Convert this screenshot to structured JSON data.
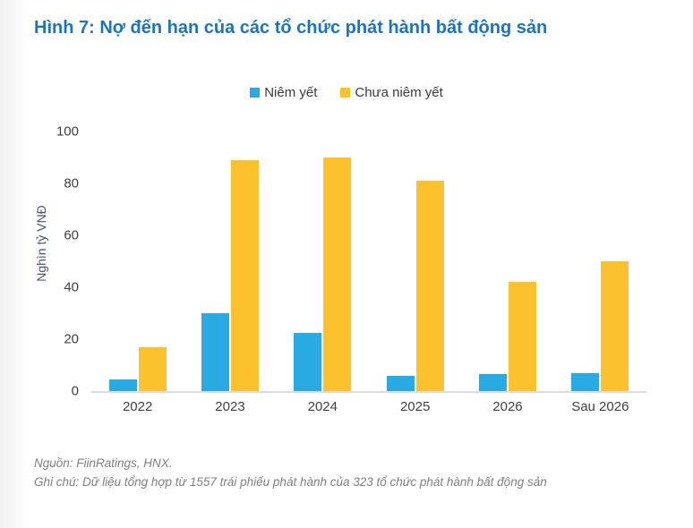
{
  "title": "Hình 7: Nợ đến hạn của các tổ chức phát hành bất động sản",
  "chart_data": {
    "type": "bar",
    "title": "Hình 7: Nợ đến hạn của các tổ chức phát hành bất động sản",
    "categories": [
      "2022",
      "2023",
      "2024",
      "2025",
      "2026",
      "Sau 2026"
    ],
    "series": [
      {
        "name": "Niêm yết",
        "color": "#29ABE2",
        "values": [
          4.5,
          30,
          22.5,
          6,
          6.5,
          7
        ]
      },
      {
        "name": "Chưa niêm yết",
        "color": "#FCC22D",
        "values": [
          17,
          89,
          90,
          81,
          42,
          50
        ]
      }
    ],
    "xlabel": "",
    "ylabel": "Nghìn tỷ VNĐ",
    "ylim": [
      0,
      100
    ],
    "yticks": [
      0,
      20,
      40,
      60,
      80,
      100
    ],
    "grid": false,
    "legend_position": "top-center"
  },
  "colors": {
    "title": "#1C75BC",
    "axis_text": "#404040",
    "y_axis_title": "#44546A",
    "baseline": "#dcdcdc",
    "footer_text": "#7F7F7F"
  },
  "footer": {
    "source": "Nguồn: FiinRatings, HNX.",
    "note": "Ghi chú: Dữ liệu tổng hợp từ 1557 trái phiếu phát hành của 323 tổ chức phát hành bất động sản"
  }
}
